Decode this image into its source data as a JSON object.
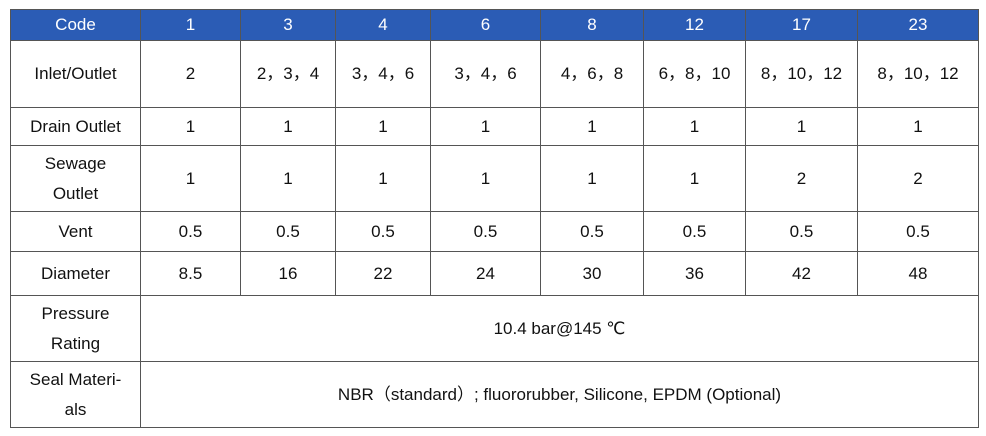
{
  "table": {
    "header": [
      "Code",
      "1",
      "3",
      "4",
      "6",
      "8",
      "12",
      "17",
      "23"
    ],
    "rows": [
      [
        "Inlet/Outlet",
        "2",
        "2，3，4",
        "3，4，6",
        "3，4，6",
        "4，6，8",
        "6，8，10",
        "8，10，12",
        "8，10，12"
      ],
      [
        "Drain Outlet",
        "1",
        "1",
        "1",
        "1",
        "1",
        "1",
        "1",
        "1"
      ],
      [
        "Sewage Outlet",
        "1",
        "1",
        "1",
        "1",
        "1",
        "1",
        "2",
        "2"
      ],
      [
        "Vent",
        "0.5",
        "0.5",
        "0.5",
        "0.5",
        "0.5",
        "0.5",
        "0.5",
        "0.5"
      ],
      [
        "Diameter",
        "8.5",
        "16",
        "22",
        "24",
        "30",
        "36",
        "42",
        "48"
      ],
      [
        "Pressure Rating",
        "10.4 bar@145 ℃"
      ],
      [
        "Seal Materi-als",
        "NBR（standard）; fluororubber, Silicone, EPDM (Optional)"
      ]
    ]
  }
}
